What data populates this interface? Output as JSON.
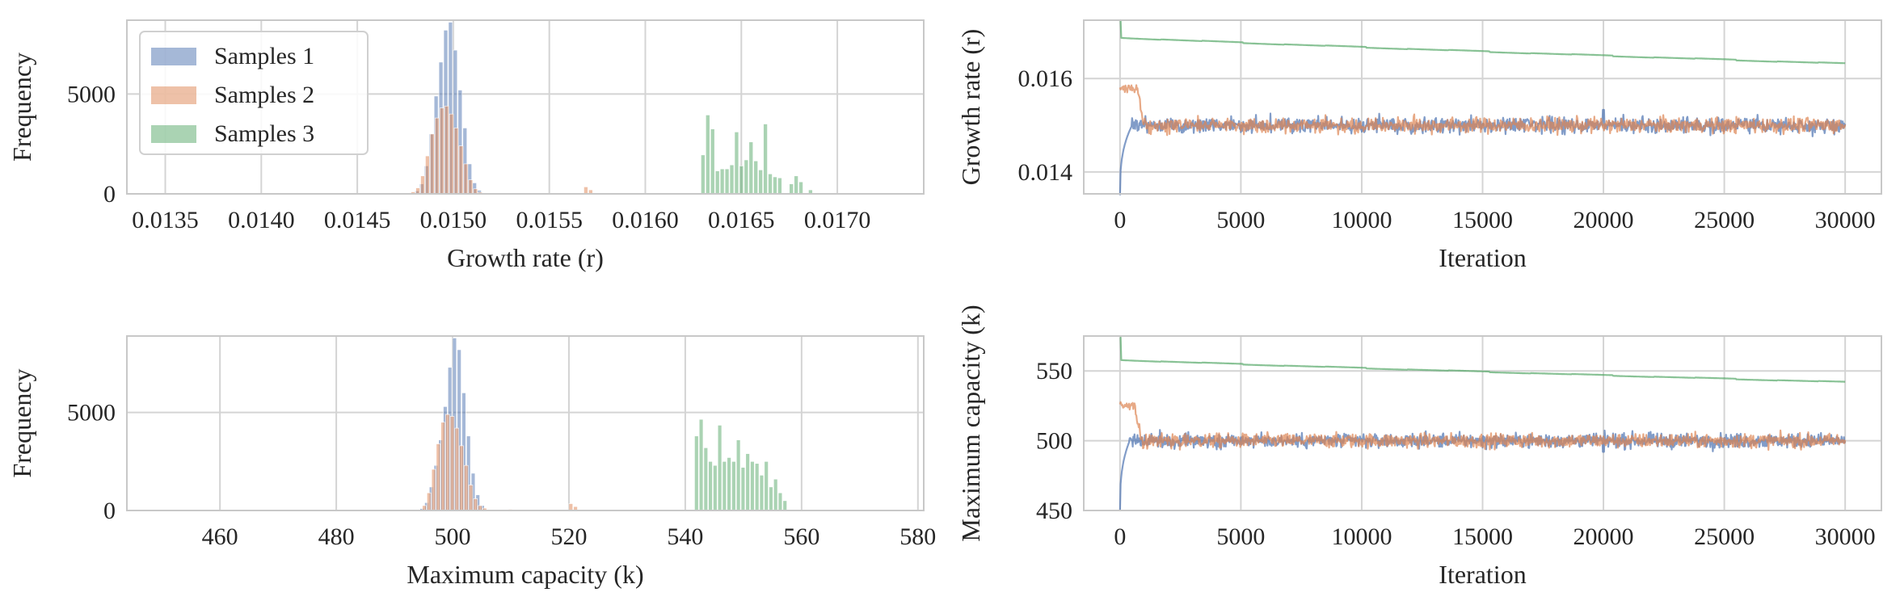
{
  "colors": {
    "s1": "#4C72B0",
    "s2": "#DD8452",
    "s3": "#55A868",
    "grid": "#d4d4d4",
    "text": "#262626"
  },
  "legend": [
    "Samples 1",
    "Samples 2",
    "Samples 3"
  ],
  "chart_data": [
    {
      "type": "histogram",
      "xlabel": "Growth rate (r)",
      "ylabel": "Frequency",
      "xlim": [
        0.0133,
        0.01745
      ],
      "ylim": [
        0,
        8700
      ],
      "xticks": [
        0.0135,
        0.014,
        0.0145,
        0.015,
        0.0155,
        0.016,
        0.0165,
        0.017
      ],
      "xtick_labels": [
        "0.0135",
        "0.0140",
        "0.0145",
        "0.0150",
        "0.0155",
        "0.0160",
        "0.0165",
        "0.0170"
      ],
      "yticks": [
        0,
        5000
      ],
      "ytick_labels": [
        "0",
        "5000"
      ],
      "legend_position": "top-left",
      "series": [
        {
          "name": "Samples 1",
          "color": "#4C72B0",
          "bin_width": 2.5e-05,
          "bins": [
            [
              0.0148,
              150
            ],
            [
              0.014825,
              500
            ],
            [
              0.01485,
              1400
            ],
            [
              0.014875,
              3000
            ],
            [
              0.0149,
              4900
            ],
            [
              0.014925,
              6600
            ],
            [
              0.01495,
              8200
            ],
            [
              0.014975,
              8600
            ],
            [
              0.015,
              7200
            ],
            [
              0.015025,
              5200
            ],
            [
              0.01505,
              3300
            ],
            [
              0.015075,
              1500
            ],
            [
              0.0151,
              550
            ],
            [
              0.015125,
              180
            ]
          ]
        },
        {
          "name": "Samples 2",
          "color": "#DD8452",
          "bin_width": 2.5e-05,
          "bins": [
            [
              0.01478,
              100
            ],
            [
              0.014805,
              300
            ],
            [
              0.01483,
              900
            ],
            [
              0.014855,
              1900
            ],
            [
              0.01488,
              3000
            ],
            [
              0.014905,
              3800
            ],
            [
              0.01493,
              4300
            ],
            [
              0.014955,
              4400
            ],
            [
              0.01498,
              4000
            ],
            [
              0.015005,
              3300
            ],
            [
              0.01503,
              2400
            ],
            [
              0.015055,
              1500
            ],
            [
              0.01508,
              700
            ],
            [
              0.015105,
              250
            ],
            [
              0.01513,
              80
            ],
            [
              0.01568,
              350
            ],
            [
              0.015705,
              200
            ]
          ]
        },
        {
          "name": "Samples 3",
          "color": "#55A868",
          "bin_width": 2.5e-05,
          "bins": [
            [
              0.01629,
              1950
            ],
            [
              0.016315,
              3950
            ],
            [
              0.01634,
              3250
            ],
            [
              0.016365,
              1150
            ],
            [
              0.01639,
              1250
            ],
            [
              0.016415,
              1250
            ],
            [
              0.01644,
              1450
            ],
            [
              0.016465,
              3100
            ],
            [
              0.01649,
              1400
            ],
            [
              0.016515,
              1700
            ],
            [
              0.01654,
              2600
            ],
            [
              0.016565,
              1650
            ],
            [
              0.01659,
              1200
            ],
            [
              0.016615,
              3500
            ],
            [
              0.01664,
              1000
            ],
            [
              0.016665,
              850
            ],
            [
              0.01669,
              800
            ],
            [
              0.01675,
              500
            ],
            [
              0.016775,
              900
            ],
            [
              0.0168,
              600
            ],
            [
              0.01685,
              200
            ]
          ]
        }
      ]
    },
    {
      "type": "line",
      "xlabel": "Iteration",
      "ylabel": "Growth rate (r)",
      "xlim": [
        -1500,
        31500
      ],
      "ylim": [
        0.01353,
        0.01725
      ],
      "xticks": [
        0,
        5000,
        10000,
        15000,
        20000,
        25000,
        30000
      ],
      "xtick_labels": [
        "0",
        "5000",
        "10000",
        "15000",
        "20000",
        "25000",
        "30000"
      ],
      "yticks": [
        0.014,
        0.016
      ],
      "ytick_labels": [
        "0.014",
        "0.016"
      ],
      "series": [
        {
          "name": "Samples 1",
          "color": "#4C72B0",
          "start": 0.0135,
          "burnin": 500,
          "mean": 0.015,
          "noise": 8e-05,
          "spikes": [
            [
              20000,
              0.01533
            ]
          ]
        },
        {
          "name": "Samples 2",
          "color": "#DD8452",
          "start": 0.0158,
          "plateau_end": 700,
          "mean": 0.015,
          "noise": 8e-05
        },
        {
          "name": "Samples 3",
          "color": "#55A868",
          "start": 0.01725,
          "step_to": 0.01688,
          "end": 0.01632
        }
      ]
    },
    {
      "type": "histogram",
      "xlabel": "Maximum capacity (k)",
      "ylabel": "Frequency",
      "xlim": [
        444,
        581
      ],
      "ylim": [
        0,
        8900
      ],
      "xticks": [
        460,
        480,
        500,
        520,
        540,
        560,
        580
      ],
      "xtick_labels": [
        "460",
        "480",
        "500",
        "520",
        "540",
        "560",
        "580"
      ],
      "yticks": [
        0,
        5000
      ],
      "ytick_labels": [
        "0",
        "5000"
      ],
      "series": [
        {
          "name": "Samples 1",
          "color": "#4C72B0",
          "bin_width": 0.8,
          "bins": [
            [
              494.4,
              100
            ],
            [
              495.2,
              400
            ],
            [
              496.0,
              1200
            ],
            [
              496.8,
              2300
            ],
            [
              497.6,
              3600
            ],
            [
              498.4,
              5300
            ],
            [
              499.2,
              7300
            ],
            [
              500.0,
              8800
            ],
            [
              500.8,
              8200
            ],
            [
              501.6,
              6000
            ],
            [
              502.4,
              3800
            ],
            [
              503.2,
              1900
            ],
            [
              504.0,
              800
            ],
            [
              504.8,
              250
            ]
          ]
        },
        {
          "name": "Samples 2",
          "color": "#DD8452",
          "bin_width": 0.8,
          "bins": [
            [
              494.8,
              250
            ],
            [
              495.6,
              900
            ],
            [
              496.4,
              2100
            ],
            [
              497.2,
              3400
            ],
            [
              498.0,
              4500
            ],
            [
              498.8,
              4900
            ],
            [
              499.6,
              4800
            ],
            [
              500.4,
              4200
            ],
            [
              501.2,
              3300
            ],
            [
              502.0,
              2300
            ],
            [
              502.8,
              1300
            ],
            [
              503.6,
              600
            ],
            [
              504.4,
              250
            ],
            [
              505.2,
              120
            ],
            [
              509.6,
              60
            ],
            [
              520.0,
              350
            ],
            [
              520.8,
              200
            ]
          ]
        },
        {
          "name": "Samples 3",
          "color": "#55A868",
          "bin_width": 0.8,
          "bins": [
            [
              541.6,
              3800
            ],
            [
              542.4,
              4650
            ],
            [
              543.2,
              3200
            ],
            [
              544.0,
              2500
            ],
            [
              544.8,
              2300
            ],
            [
              545.6,
              4350
            ],
            [
              546.4,
              2500
            ],
            [
              547.2,
              2700
            ],
            [
              548.0,
              2500
            ],
            [
              548.8,
              3600
            ],
            [
              549.6,
              2200
            ],
            [
              550.4,
              2900
            ],
            [
              551.2,
              2500
            ],
            [
              552.0,
              2400
            ],
            [
              552.8,
              1800
            ],
            [
              553.6,
              2500
            ],
            [
              554.4,
              1200
            ],
            [
              555.2,
              1600
            ],
            [
              556.0,
              900
            ],
            [
              556.8,
              500
            ]
          ]
        }
      ]
    },
    {
      "type": "line",
      "xlabel": "Iteration",
      "ylabel": "Maximum capacity (k)",
      "xlim": [
        -1500,
        31500
      ],
      "ylim": [
        450,
        575
      ],
      "xticks": [
        0,
        5000,
        10000,
        15000,
        20000,
        25000,
        30000
      ],
      "xtick_labels": [
        "0",
        "5000",
        "10000",
        "15000",
        "20000",
        "25000",
        "30000"
      ],
      "yticks": [
        450,
        500,
        550
      ],
      "ytick_labels": [
        "450",
        "500",
        "550"
      ],
      "series": [
        {
          "name": "Samples 1",
          "color": "#4C72B0",
          "start": 450,
          "burnin": 400,
          "mean": 500,
          "noise": 2.5,
          "spikes": [
            [
              20000,
              492
            ]
          ]
        },
        {
          "name": "Samples 2",
          "color": "#DD8452",
          "start": 525,
          "plateau_end": 600,
          "mean": 500,
          "noise": 2.5
        },
        {
          "name": "Samples 3",
          "color": "#55A868",
          "start": 574,
          "step_to": 558,
          "end": 542
        }
      ]
    }
  ]
}
